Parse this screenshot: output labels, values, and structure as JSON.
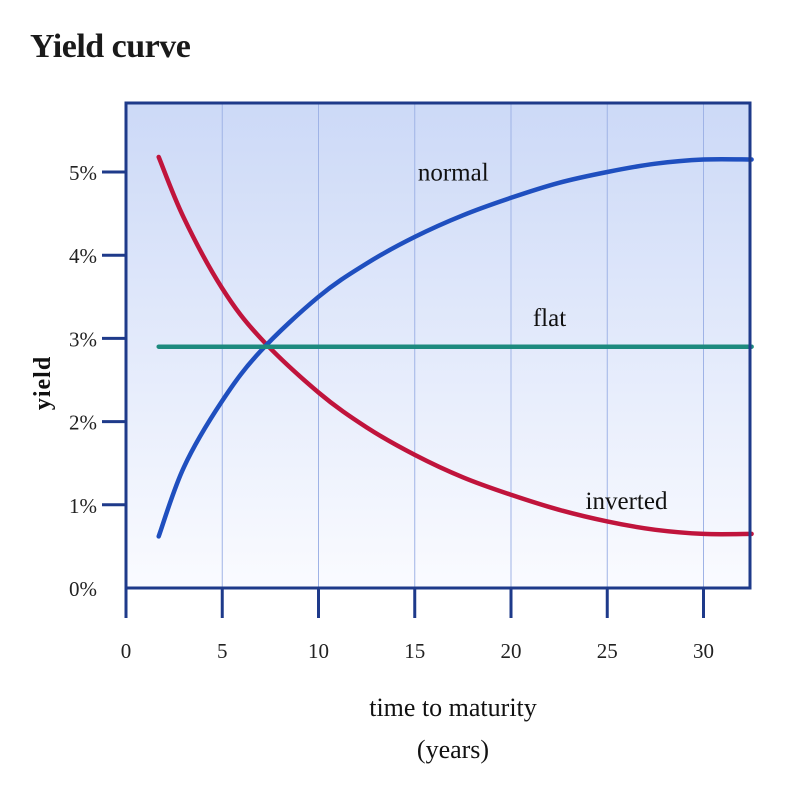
{
  "title": "Yield curve",
  "chart_data": {
    "type": "line",
    "title": "Yield curve",
    "xlabel": [
      "time to maturity",
      "(years)"
    ],
    "ylabel": "yield",
    "xlim": [
      0,
      33
    ],
    "ylim": [
      0,
      6
    ],
    "x_ticks": [
      0,
      5,
      10,
      15,
      20,
      25,
      30
    ],
    "x_tick_labels": [
      "0",
      "5",
      "10",
      "15",
      "20",
      "25",
      "30"
    ],
    "y_ticks": [
      0,
      1,
      2,
      3,
      4,
      5
    ],
    "y_tick_labels": [
      "0%",
      "1%",
      "2%",
      "3%",
      "4%",
      "5%"
    ],
    "grid": "vertical",
    "series": [
      {
        "name": "normal",
        "color": "#1f4fbf",
        "x": [
          1.7,
          3,
          5,
          7,
          10,
          12.5,
          15,
          17.5,
          20,
          22.5,
          25,
          27.5,
          30,
          32.5
        ],
        "y": [
          0.62,
          1.45,
          2.25,
          2.85,
          3.5,
          3.9,
          4.22,
          4.48,
          4.69,
          4.87,
          5.0,
          5.1,
          5.15,
          5.15
        ]
      },
      {
        "name": "flat",
        "color": "#1d8a7e",
        "x": [
          1.7,
          32.5
        ],
        "y": [
          2.9,
          2.9
        ]
      },
      {
        "name": "inverted",
        "color": "#c0143c",
        "x": [
          1.7,
          3,
          5,
          7,
          10,
          12.5,
          15,
          17.5,
          20,
          22.5,
          25,
          27.5,
          30,
          32.5
        ],
        "y": [
          5.18,
          4.45,
          3.6,
          3.0,
          2.35,
          1.93,
          1.6,
          1.33,
          1.12,
          0.94,
          0.8,
          0.7,
          0.65,
          0.65
        ]
      }
    ],
    "labels": [
      {
        "text": "normal",
        "x": 17,
        "y": 4.9
      },
      {
        "text": "flat",
        "x": 22,
        "y": 3.15
      },
      {
        "text": "inverted",
        "x": 26,
        "y": 0.95
      }
    ],
    "colors": {
      "plot_background_top": "#ccd9f7",
      "plot_background_bottom": "#fafbff",
      "frame": "#1e3a8a",
      "grid": "#9fb3e6"
    }
  }
}
